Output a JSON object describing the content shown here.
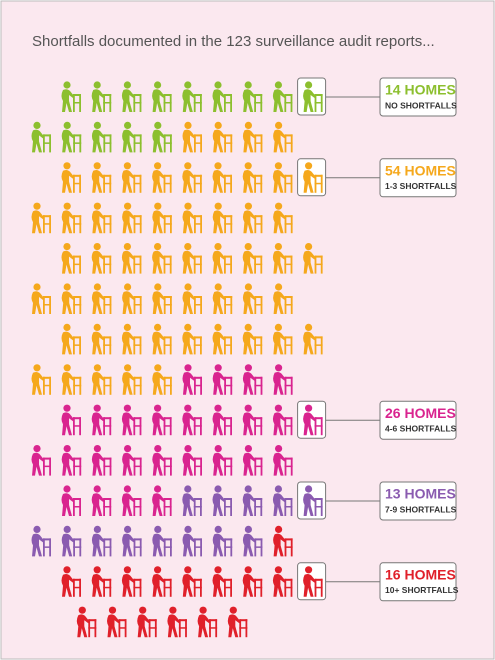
{
  "chart_data": {
    "type": "pictograph",
    "title": "Shortfalls documented in the 123 surveillance audit reports...",
    "categories": [
      "NO SHORTFALLS",
      "1-3 SHORTFALLS",
      "4-6 SHORTFALLS",
      "7-9 SHORTFALLS",
      "10+ SHORTFALLS"
    ],
    "values": [
      14,
      54,
      26,
      13,
      16
    ],
    "value_labels": [
      "14 HOMES",
      "54 HOMES",
      "26 HOMES",
      "13 HOMES",
      "16 HOMES"
    ],
    "colors": [
      "#8cbf2e",
      "#f5a81c",
      "#d9248f",
      "#8a5bb0",
      "#e0202a"
    ]
  }
}
